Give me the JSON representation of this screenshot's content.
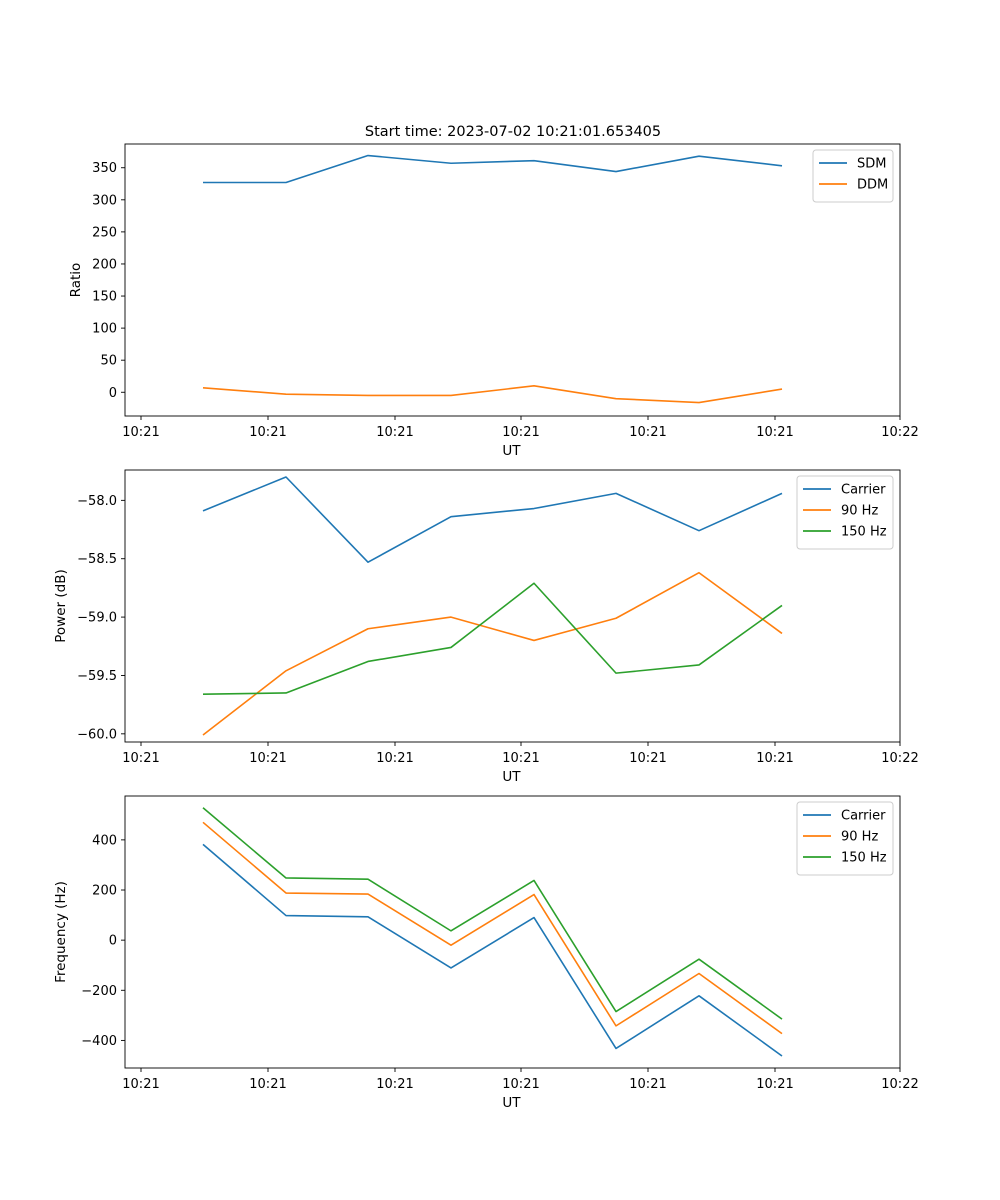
{
  "figure_title": "Start time: 2023-07-02 10:21:01.653405",
  "chart_data": [
    {
      "type": "line",
      "title": "Start time: 2023-07-02 10:21:01.653405",
      "xlabel": "UT",
      "ylabel": "Ratio",
      "x_tick_labels": [
        "10:21",
        "10:21",
        "10:21",
        "10:21",
        "10:21",
        "10:21",
        "10:22"
      ],
      "ylim": [
        -37,
        387
      ],
      "y_ticks": [
        0,
        50,
        100,
        150,
        200,
        250,
        300,
        350
      ],
      "y_tick_labels": [
        "0",
        "50",
        "100",
        "150",
        "200",
        "250",
        "300",
        "350"
      ],
      "legend_position": "top-right",
      "series": [
        {
          "name": "SDM",
          "color": "#1f77b4",
          "values": [
            327,
            327,
            369,
            357,
            361,
            344,
            368,
            353
          ]
        },
        {
          "name": "DDM",
          "color": "#ff7f0e",
          "values": [
            7,
            -3,
            -5,
            -5,
            10,
            -10,
            -16,
            5
          ]
        }
      ]
    },
    {
      "type": "line",
      "title": "",
      "xlabel": "UT",
      "ylabel": "Power (dB)",
      "x_tick_labels": [
        "10:21",
        "10:21",
        "10:21",
        "10:21",
        "10:21",
        "10:21",
        "10:22"
      ],
      "ylim": [
        -60.07,
        -57.74
      ],
      "y_ticks": [
        -60.0,
        -59.5,
        -59.0,
        -58.5,
        -58.0
      ],
      "y_tick_labels": [
        "−60.0",
        "−59.5",
        "−59.0",
        "−58.5",
        "−58.0"
      ],
      "legend_position": "top-right",
      "series": [
        {
          "name": "Carrier",
          "color": "#1f77b4",
          "values": [
            -58.09,
            -57.8,
            -58.53,
            -58.14,
            -58.07,
            -57.94,
            -58.26,
            -57.94
          ]
        },
        {
          "name": "90 Hz",
          "color": "#ff7f0e",
          "values": [
            -60.01,
            -59.46,
            -59.1,
            -59.0,
            -59.2,
            -59.01,
            -58.62,
            -59.14
          ]
        },
        {
          "name": "150 Hz",
          "color": "#2ca02c",
          "values": [
            -59.66,
            -59.65,
            -59.38,
            -59.26,
            -58.71,
            -59.48,
            -59.41,
            -58.9
          ]
        }
      ]
    },
    {
      "type": "line",
      "title": "",
      "xlabel": "UT",
      "ylabel": "Frequency (Hz)",
      "x_tick_labels": [
        "10:21",
        "10:21",
        "10:21",
        "10:21",
        "10:21",
        "10:21",
        "10:22"
      ],
      "ylim": [
        -510,
        575
      ],
      "y_ticks": [
        -400,
        -200,
        0,
        200,
        400
      ],
      "y_tick_labels": [
        "−400",
        "−200",
        "0",
        "200",
        "400"
      ],
      "legend_position": "top-right",
      "series": [
        {
          "name": "Carrier",
          "color": "#1f77b4",
          "values": [
            382,
            98,
            93,
            -111,
            90,
            -432,
            -222,
            -462
          ]
        },
        {
          "name": "90 Hz",
          "color": "#ff7f0e",
          "values": [
            470,
            188,
            184,
            -20,
            182,
            -342,
            -133,
            -373
          ]
        },
        {
          "name": "150 Hz",
          "color": "#2ca02c",
          "values": [
            528,
            248,
            243,
            37,
            238,
            -285,
            -76,
            -315
          ]
        }
      ]
    }
  ]
}
